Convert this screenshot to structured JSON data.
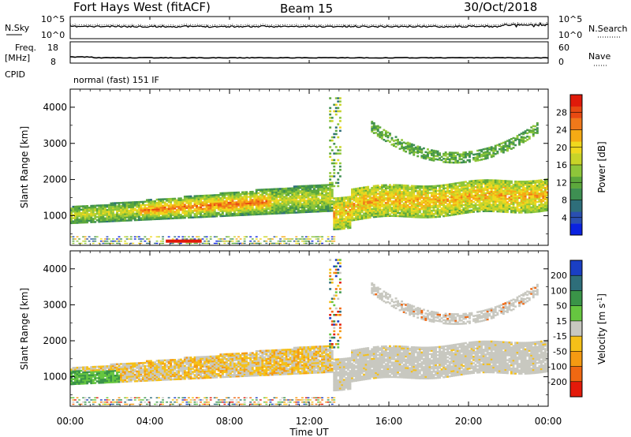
{
  "header": {
    "station": "Fort Hays West (fitACF)",
    "beam": "Beam 15",
    "date": "30/Oct/2018"
  },
  "noise_panel": {
    "left_label": "N.Sky",
    "right_label": "N.Search",
    "left_ticks": [
      "10^5",
      "10^0"
    ],
    "right_ticks": [
      "10^5",
      "10^0"
    ],
    "level_fraction": 0.55
  },
  "freq_panel": {
    "left_label": "Freq.",
    "left_unit": "[MHz]",
    "left_ticks": [
      "18",
      "8"
    ],
    "right_label": "Nave",
    "right_ticks": [
      "60",
      "0"
    ],
    "freq_ylim": [
      8,
      18
    ],
    "freq_mhz": 10.5
  },
  "cpid": {
    "label": "CPID",
    "value": "normal (fast) 151 IF"
  },
  "chart_data": [
    {
      "type": "heatmap",
      "title": "",
      "xlabel": "Time UT",
      "ylabel": "Slant Range [km]",
      "x_ticks": [
        "00:00",
        "04:00",
        "08:00",
        "12:00",
        "16:00",
        "20:00",
        "00:00"
      ],
      "xlim_hours": [
        0,
        24
      ],
      "y_ticks": [
        1000,
        2000,
        3000,
        4000
      ],
      "ylim_km": [
        180,
        4500
      ],
      "colorbar": {
        "label": "Power [dB]",
        "ticks": [
          4,
          8,
          12,
          16,
          20,
          24,
          28
        ],
        "range": [
          0,
          32
        ],
        "colors": [
          "#0a22e0",
          "#2a4fb0",
          "#2e6e7a",
          "#3e8f52",
          "#5ca83c",
          "#8ec63a",
          "#c8d428",
          "#f0d81e",
          "#f5aa14",
          "#f0781a",
          "#e84a12",
          "#e01a0a"
        ]
      },
      "features": [
        {
          "name": "early-band",
          "t": [
            0,
            13.1
          ],
          "center_km": [
            1000,
            1500
          ],
          "width_km": 320,
          "peak_db": [
            10,
            26
          ]
        },
        {
          "name": "late-band",
          "t": [
            13.1,
            24
          ],
          "center_km": [
            1300,
            1600
          ],
          "width_km": 450,
          "peak_db": [
            14,
            22
          ]
        },
        {
          "name": "upper-arc",
          "t": [
            15,
            24
          ],
          "center_km": [
            3000,
            3600
          ],
          "width_km": 180,
          "peak_db": [
            8,
            16
          ]
        },
        {
          "name": "ground-scatter-line",
          "t": [
            0,
            13
          ],
          "center_km": 300,
          "width_km": 100,
          "peak_db": [
            8,
            24
          ]
        }
      ]
    },
    {
      "type": "heatmap",
      "title": "",
      "xlabel": "Time UT",
      "ylabel": "Slant Range [km]",
      "x_ticks": [
        "00:00",
        "04:00",
        "08:00",
        "12:00",
        "16:00",
        "20:00",
        "00:00"
      ],
      "xlim_hours": [
        0,
        24
      ],
      "y_ticks": [
        1000,
        2000,
        3000,
        4000
      ],
      "ylim_km": [
        180,
        4500
      ],
      "colorbar": {
        "label_main": "Velocity [m s",
        "label_sup": "-1",
        "label_close": "]",
        "ticks": [
          "200",
          "100",
          "50",
          "15",
          "-15",
          "-50",
          "-100",
          "-200"
        ],
        "colors": [
          "#1a3fc4",
          "#2e6e7a",
          "#3a9448",
          "#66c640",
          "#c8c8c0",
          "#f5c018",
          "#f59a12",
          "#f06812",
          "#e41a0a"
        ]
      },
      "features": [
        {
          "name": "early-band",
          "t": [
            0,
            13.1
          ],
          "center_km": [
            850,
            1450
          ],
          "width_km": 330,
          "velocity": "-15 to -100"
        },
        {
          "name": "late-band",
          "t": [
            13.1,
            24
          ],
          "center_km": [
            1450,
            1700
          ],
          "width_km": 480,
          "velocity": "ground scatter"
        },
        {
          "name": "upper-arc",
          "t": [
            15,
            24
          ],
          "center_km": [
            3000,
            3600
          ],
          "width_km": 180,
          "velocity": "ground scatter"
        }
      ]
    }
  ]
}
